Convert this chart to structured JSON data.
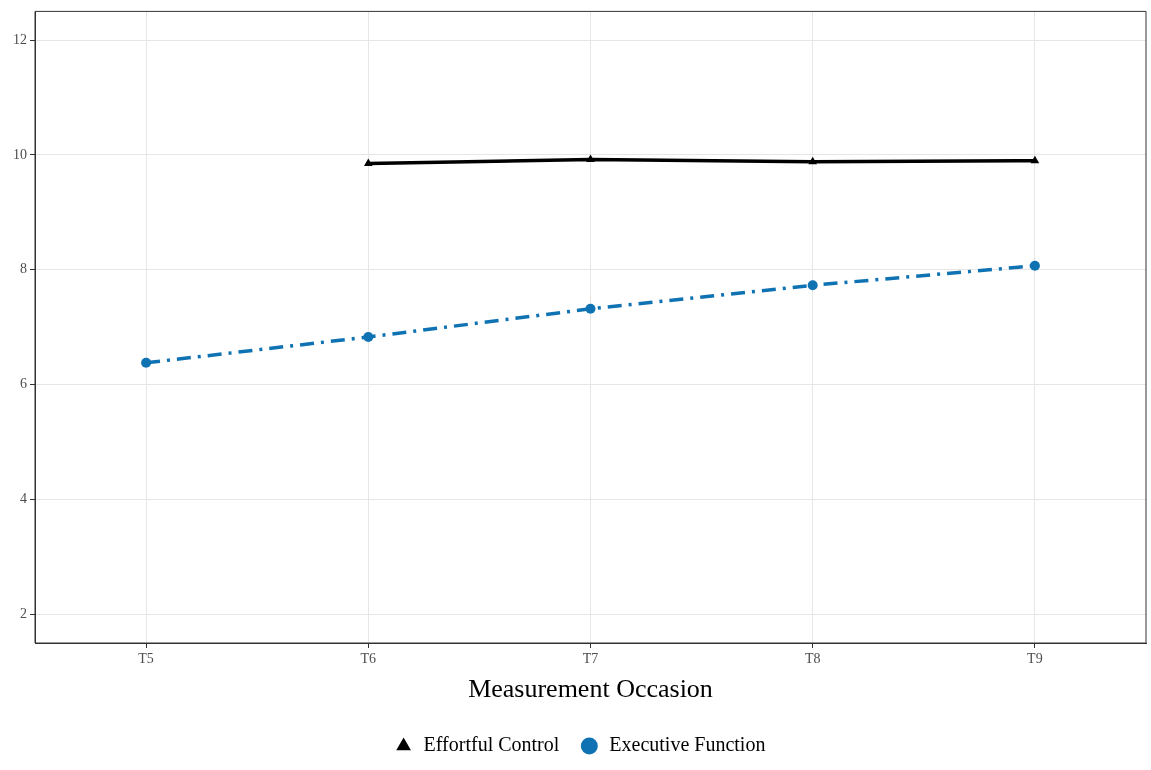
{
  "chart_data": {
    "type": "line",
    "xlabel": "Measurement Occasion",
    "categories": [
      "T5",
      "T6",
      "T7",
      "T8",
      "T9"
    ],
    "series": [
      {
        "name": "Effortful Control",
        "color": "#000000",
        "marker": "triangle",
        "line_style": "solid",
        "values": [
          null,
          9.85,
          9.92,
          9.88,
          9.9
        ]
      },
      {
        "name": "Executive Function",
        "color": "#0f72b2",
        "marker": "circle",
        "line_style": "dashed",
        "values": [
          6.38,
          6.83,
          7.32,
          7.73,
          8.07
        ]
      }
    ],
    "ylim": [
      1.5,
      12.5
    ],
    "yticks": [
      2,
      4,
      6,
      8,
      10,
      12
    ],
    "grid": true,
    "legend": "bottom"
  }
}
